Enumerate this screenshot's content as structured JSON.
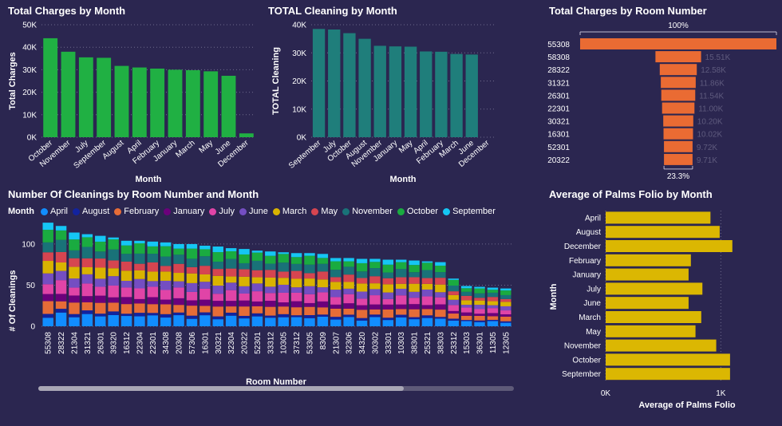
{
  "colors": {
    "background": "#2b2650",
    "green": "#20b043",
    "teal": "#1f7e7b",
    "orange": "#ea6b33",
    "gold": "#dbb702",
    "grid": "#6e6a8c",
    "axis_text": "#ffffff",
    "muted_label": "#5f5b7e"
  },
  "legend": {
    "title": "Month",
    "items": [
      {
        "label": "April",
        "color": "#118dff"
      },
      {
        "label": "August",
        "color": "#12239e"
      },
      {
        "label": "February",
        "color": "#e66c37"
      },
      {
        "label": "January",
        "color": "#6b007b"
      },
      {
        "label": "July",
        "color": "#e044a7"
      },
      {
        "label": "June",
        "color": "#744ec2"
      },
      {
        "label": "March",
        "color": "#d9b300"
      },
      {
        "label": "May",
        "color": "#d64550"
      },
      {
        "label": "November",
        "color": "#197278"
      },
      {
        "label": "October",
        "color": "#1aab40"
      },
      {
        "label": "September",
        "color": "#15c6f4"
      }
    ]
  },
  "chart_data": [
    {
      "type": "bar",
      "title": "Total Charges by Month",
      "xlabel": "Month",
      "ylabel": "Total Charges",
      "categories": [
        "October",
        "November",
        "July",
        "September",
        "August",
        "April",
        "February",
        "January",
        "March",
        "May",
        "June",
        "December"
      ],
      "values": [
        44000,
        38000,
        35500,
        35300,
        31700,
        31000,
        30500,
        30000,
        29800,
        29300,
        27300,
        1700
      ],
      "ylim": [
        0,
        50000
      ],
      "yticks": [
        "0K",
        "10K",
        "20K",
        "30K",
        "40K",
        "50K"
      ],
      "grid": true
    },
    {
      "type": "bar",
      "title": "TOTAL Cleaning by Month",
      "xlabel": "Month",
      "ylabel": "TOTAL Cleaning",
      "categories": [
        "September",
        "July",
        "October",
        "August",
        "November",
        "January",
        "May",
        "April",
        "February",
        "March",
        "June",
        "December"
      ],
      "values": [
        38500,
        38300,
        37000,
        35000,
        32500,
        32300,
        32200,
        30500,
        30400,
        29600,
        29400,
        0
      ],
      "ylim": [
        0,
        40000
      ],
      "yticks": [
        "0K",
        "10K",
        "20K",
        "30K",
        "40K"
      ],
      "grid": true
    },
    {
      "type": "bar",
      "orientation": "horizontal-funnel",
      "title": "Total Charges by Room Number",
      "top_label": "100%",
      "bottom_label": "23.3%",
      "categories": [
        "55308",
        "58308",
        "28322",
        "31321",
        "26301",
        "22301",
        "30321",
        "16301",
        "52301",
        "20322"
      ],
      "values": [
        66700,
        15510,
        12580,
        11860,
        11540,
        11000,
        10200,
        10020,
        9720,
        9710
      ],
      "value_labels": [
        "",
        "15.51K",
        "12.58K",
        "11.86K",
        "11.54K",
        "11.00K",
        "10.20K",
        "10.02K",
        "9.72K",
        "9.71K"
      ]
    },
    {
      "type": "bar",
      "stacked": true,
      "title": "Number Of Cleanings by Room Number and Month",
      "xlabel": "Room Number",
      "ylabel": "# Of Cleanings",
      "categories": [
        "55308",
        "28322",
        "21304",
        "31321",
        "26301",
        "39320",
        "16312",
        "22304",
        "22301",
        "34308",
        "20308",
        "57306",
        "16301",
        "30321",
        "32304",
        "20322",
        "52301",
        "33312",
        "10305",
        "37312",
        "53305",
        "8309",
        "21307",
        "32306",
        "34320",
        "30302",
        "33301",
        "10303",
        "38301",
        "25321",
        "38303",
        "23312",
        "15303",
        "36301",
        "11305",
        "12305"
      ],
      "series_order": [
        "April",
        "August",
        "February",
        "January",
        "July",
        "June",
        "March",
        "May",
        "November",
        "October",
        "September"
      ],
      "totals": [
        126,
        122,
        114,
        112,
        110,
        108,
        104,
        104,
        103,
        102,
        100,
        100,
        98,
        97,
        95,
        94,
        92,
        91,
        90,
        89,
        89,
        88,
        83,
        83,
        82,
        82,
        81,
        81,
        80,
        79,
        78,
        58,
        49,
        48,
        47,
        46
      ],
      "ylim": [
        0,
        130
      ],
      "yticks": [
        "0",
        "50",
        "100"
      ],
      "grid": true
    },
    {
      "type": "bar",
      "orientation": "horizontal",
      "title": "Average of Palms Folio by Month",
      "xlabel": "Average of Palms Folio",
      "ylabel": "Month",
      "categories": [
        "April",
        "August",
        "December",
        "February",
        "January",
        "July",
        "June",
        "March",
        "May",
        "November",
        "October",
        "September"
      ],
      "values": [
        910,
        990,
        1100,
        740,
        720,
        840,
        720,
        830,
        780,
        960,
        1080,
        1080
      ],
      "xlim": [
        0,
        1150
      ],
      "xticks": [
        "0K",
        "1K"
      ],
      "grid": true
    }
  ]
}
